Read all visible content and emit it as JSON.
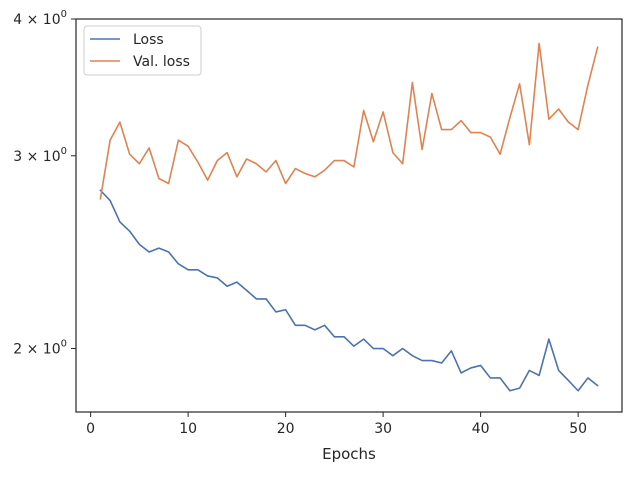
{
  "chart_data": {
    "type": "line",
    "title": "",
    "xlabel": "Epochs",
    "ylabel": "",
    "xlim": [
      -1.5,
      54.5
    ],
    "ylim": [
      1.75,
      4.0
    ],
    "yscale": "log",
    "grid": false,
    "legend_position": "top-left",
    "x_ticks": [
      0,
      10,
      20,
      30,
      40,
      50
    ],
    "x_tick_labels": [
      "0",
      "10",
      "20",
      "30",
      "40",
      "50"
    ],
    "y_ticks": [
      {
        "value": 2,
        "mantissa": "2",
        "base": "10",
        "exponent": "0"
      },
      {
        "value": 3,
        "mantissa": "3",
        "base": "10",
        "exponent": "0"
      },
      {
        "value": 4,
        "mantissa": "4",
        "base": "10",
        "exponent": "0"
      }
    ],
    "x": [
      1,
      2,
      3,
      4,
      5,
      6,
      7,
      8,
      9,
      10,
      11,
      12,
      13,
      14,
      15,
      16,
      17,
      18,
      19,
      20,
      21,
      22,
      23,
      24,
      25,
      26,
      27,
      28,
      29,
      30,
      31,
      32,
      33,
      34,
      35,
      36,
      37,
      38,
      39,
      40,
      41,
      42,
      43,
      44,
      45,
      46,
      47,
      48,
      49,
      50,
      51,
      52
    ],
    "series": [
      {
        "name": "Loss",
        "color": "#4c72b0",
        "values": [
          2.79,
          2.73,
          2.61,
          2.56,
          2.49,
          2.45,
          2.47,
          2.45,
          2.39,
          2.36,
          2.36,
          2.33,
          2.32,
          2.28,
          2.3,
          2.26,
          2.22,
          2.22,
          2.16,
          2.17,
          2.1,
          2.1,
          2.08,
          2.1,
          2.05,
          2.05,
          2.01,
          2.04,
          2.0,
          2.0,
          1.97,
          2.0,
          1.97,
          1.95,
          1.95,
          1.94,
          1.99,
          1.9,
          1.92,
          1.93,
          1.88,
          1.88,
          1.83,
          1.84,
          1.91,
          1.89,
          2.04,
          1.91,
          1.87,
          1.83,
          1.88,
          1.85
        ]
      },
      {
        "name": "Val. loss",
        "color": "#dd8452",
        "values": [
          2.74,
          3.1,
          3.22,
          3.01,
          2.95,
          3.05,
          2.86,
          2.83,
          3.1,
          3.06,
          2.96,
          2.85,
          2.97,
          3.02,
          2.87,
          2.98,
          2.95,
          2.9,
          2.97,
          2.83,
          2.92,
          2.89,
          2.87,
          2.91,
          2.97,
          2.97,
          2.93,
          3.3,
          3.09,
          3.29,
          3.02,
          2.95,
          3.5,
          3.04,
          3.42,
          3.17,
          3.17,
          3.23,
          3.15,
          3.15,
          3.12,
          3.01,
          3.25,
          3.49,
          3.07,
          3.8,
          3.24,
          3.31,
          3.22,
          3.17,
          3.48,
          3.77
        ]
      }
    ]
  }
}
